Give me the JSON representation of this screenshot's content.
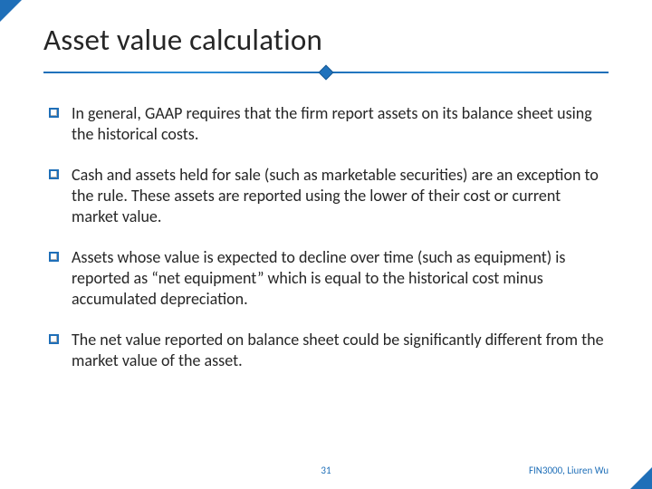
{
  "title": "Asset value calculation",
  "accent_color": "#1f6fb8",
  "bullet_border_color": "#1f6fb8",
  "text_color": "#262626",
  "footer_color": "#1f6fb8",
  "background_color": "#ffffff",
  "title_fontsize": 33,
  "body_fontsize": 18,
  "footer_fontsize": 11,
  "bullets": [
    "In general, GAAP requires that the firm report assets on its balance sheet using the historical costs.",
    "Cash and assets held for sale (such as marketable securities) are an exception to the rule. These assets are reported using the lower of their cost or current market value.",
    "Assets whose value is expected to decline over time (such as equipment) is reported as “net equipment” which is equal to the historical cost minus accumulated depreciation.",
    "The net value reported on balance sheet could be significantly different from the market value of the asset."
  ],
  "page_number": "31",
  "course_label": "FIN3000, Liuren Wu"
}
